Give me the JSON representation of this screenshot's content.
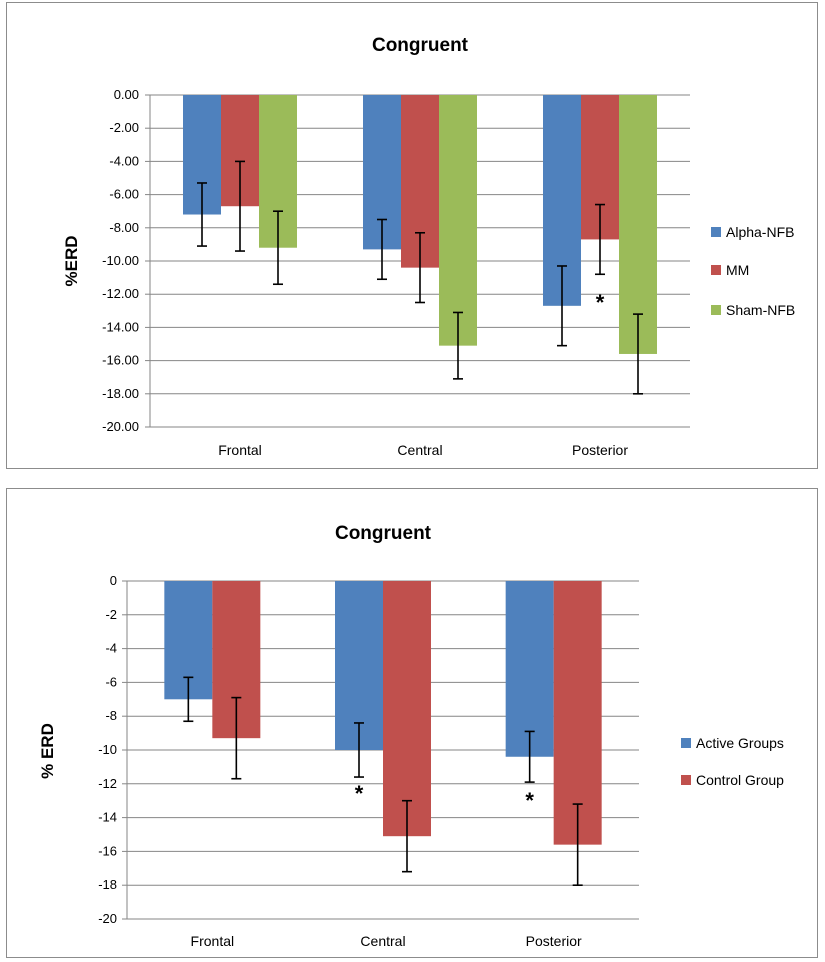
{
  "chart_data": [
    {
      "type": "bar",
      "title": "Congruent",
      "xlabel": "",
      "ylabel": "%ERD",
      "categories": [
        "Frontal",
        "Central",
        "Posterior"
      ],
      "ylim": [
        -20,
        0
      ],
      "yticks": [
        "0.00",
        "-2.00",
        "-4.00",
        "-6.00",
        "-8.00",
        "-10.00",
        "-12.00",
        "-14.00",
        "-16.00",
        "-18.00",
        "-20.00"
      ],
      "grid": true,
      "legend_position": "right",
      "series": [
        {
          "name": "Alpha-NFB",
          "color": "#4f81bd",
          "values": [
            -7.2,
            -9.3,
            -12.7
          ],
          "errors": [
            1.9,
            1.8,
            2.4
          ]
        },
        {
          "name": "MM",
          "color": "#c0504d",
          "values": [
            -6.7,
            -10.4,
            -8.7
          ],
          "errors": [
            2.7,
            2.1,
            2.1
          ]
        },
        {
          "name": "Sham-NFB",
          "color": "#9bbb59",
          "values": [
            -9.2,
            -15.1,
            -15.6
          ],
          "errors": [
            2.2,
            2.0,
            2.4
          ]
        }
      ],
      "annotations": [
        {
          "text": "*",
          "category": "Posterior",
          "series": "MM",
          "y": -12.1
        }
      ]
    },
    {
      "type": "bar",
      "title": "Congruent",
      "xlabel": "",
      "ylabel": "% ERD",
      "categories": [
        "Frontal",
        "Central",
        "Posterior"
      ],
      "ylim": [
        -20,
        0
      ],
      "yticks": [
        "0",
        "-2",
        "-4",
        "-6",
        "-8",
        "-10",
        "-12",
        "-14",
        "-16",
        "-18",
        "-20"
      ],
      "grid": true,
      "legend_position": "right",
      "series": [
        {
          "name": "Active Groups",
          "color": "#4f81bd",
          "values": [
            -7.0,
            -10.0,
            -10.4
          ],
          "errors": [
            1.3,
            1.6,
            1.5
          ]
        },
        {
          "name": "Control Group",
          "color": "#c0504d",
          "values": [
            -9.3,
            -15.1,
            -15.6
          ],
          "errors": [
            2.4,
            2.1,
            2.4
          ]
        }
      ],
      "annotations": [
        {
          "text": "*",
          "category": "Central",
          "series": "Active Groups",
          "y": -12.2
        },
        {
          "text": "*",
          "category": "Posterior",
          "series": "Active Groups",
          "y": -12.6
        }
      ]
    }
  ]
}
